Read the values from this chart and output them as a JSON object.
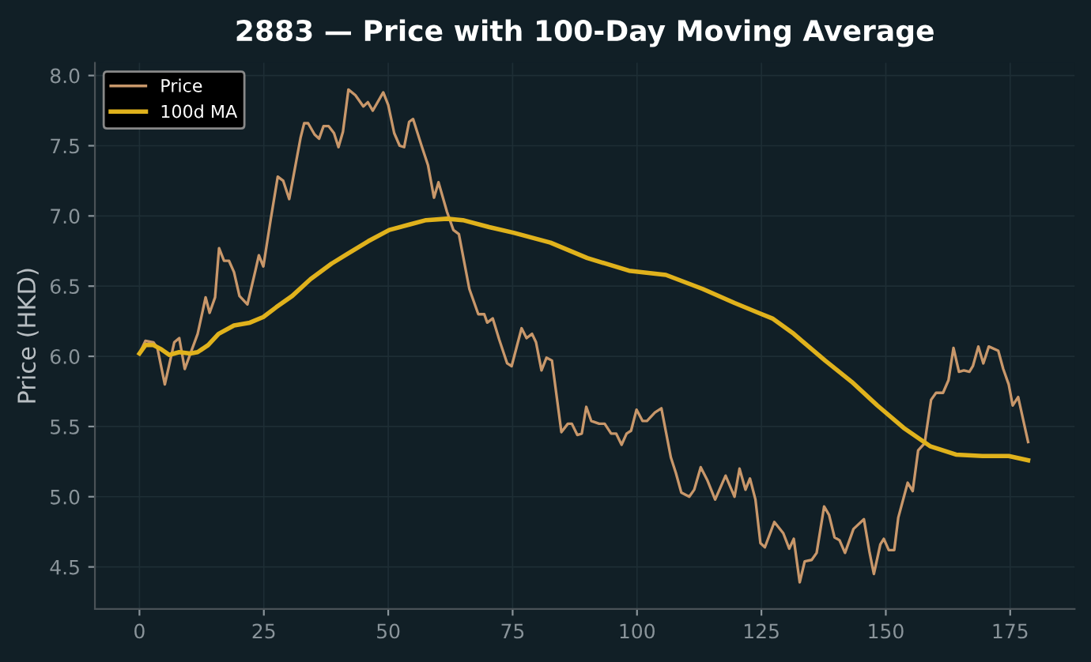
{
  "chart_data": {
    "type": "line",
    "title": "2883 — Price with 100-Day Moving Average",
    "ylabel": "Price (HKD)",
    "xlim": [
      -8.95,
      187.95
    ],
    "xticks": [
      0,
      25,
      50,
      75,
      100,
      125,
      150,
      175
    ],
    "ylim": [
      4.2,
      8.09
    ],
    "yticks": [
      {
        "value": 4.5,
        "label": "4.5"
      },
      {
        "value": 5.0,
        "label": "5.0"
      },
      {
        "value": 5.5,
        "label": "5.5"
      },
      {
        "value": 6.0,
        "label": "6.0"
      },
      {
        "value": 6.5,
        "label": "6.5"
      },
      {
        "value": 7.0,
        "label": "7.0"
      },
      {
        "value": 7.5,
        "label": "7.5"
      },
      {
        "value": 8.0,
        "label": "8.0"
      }
    ],
    "grid": true,
    "legend": "top left",
    "marker": "none",
    "line_style": "solid",
    "series": [
      {
        "name": "Price",
        "color": "#c8976a",
        "x": [
          0,
          1.2,
          2.8,
          3.6,
          5.1,
          7,
          8,
          9.1,
          11.7,
          13.3,
          14.1,
          15.2,
          16,
          17,
          18,
          19,
          20.1,
          21.7,
          23.3,
          24,
          24.9,
          26.4,
          27.8,
          28.9,
          30.1,
          32.4,
          33.1,
          33.9,
          35.2,
          36.1,
          37,
          38,
          39.1,
          40,
          40.9,
          42,
          43.4,
          45,
          45.9,
          46.9,
          49,
          50,
          51.2,
          52.3,
          53.2,
          54.2,
          55,
          56.7,
          58,
          59.2,
          60.1,
          61.8,
          63.1,
          64.2,
          66.3,
          68.1,
          69.3,
          69.9,
          71,
          72.3,
          73.9,
          74.8,
          76.8,
          77.8,
          78.9,
          79.7,
          80.8,
          81.8,
          82.9,
          84.8,
          86.1,
          86.9,
          88,
          88.9,
          89.8,
          90.8,
          92.4,
          93.5,
          94.8,
          95.8,
          96.9,
          97.9,
          98.8,
          99.9,
          101.1,
          102,
          103.6,
          104.9,
          106.8,
          107.8,
          108.9,
          110.5,
          111.5,
          112.8,
          114.1,
          115.7,
          117.8,
          119.6,
          120.6,
          121.8,
          122.7,
          123.8,
          124.8,
          125.7,
          127.6,
          129.4,
          130.6,
          131.5,
          132.7,
          133.7,
          135.1,
          136.1,
          137.6,
          138.6,
          139.7,
          140.7,
          141.8,
          143.5,
          145.6,
          146.7,
          147.6,
          148.9,
          149.6,
          150.6,
          151.7,
          152.5,
          154.4,
          155.4,
          156.5,
          157.8,
          159.1,
          160.1,
          161.5,
          162.6,
          163.6,
          164.7,
          165.7,
          166.8,
          167.5,
          168.6,
          169.6,
          170.7,
          172.6,
          173.6,
          174.7,
          175.5,
          176.6,
          178.6
        ],
        "values": [
          6.02,
          6.11,
          6.1,
          6.06,
          5.8,
          6.1,
          6.13,
          5.91,
          6.16,
          6.42,
          6.31,
          6.42,
          6.77,
          6.68,
          6.68,
          6.6,
          6.43,
          6.37,
          6.61,
          6.72,
          6.64,
          6.98,
          7.28,
          7.25,
          7.12,
          7.56,
          7.66,
          7.66,
          7.58,
          7.55,
          7.64,
          7.64,
          7.59,
          7.49,
          7.6,
          7.9,
          7.86,
          7.78,
          7.81,
          7.75,
          7.88,
          7.79,
          7.59,
          7.5,
          7.49,
          7.67,
          7.69,
          7.5,
          7.36,
          7.13,
          7.24,
          7.03,
          6.9,
          6.87,
          6.48,
          6.3,
          6.3,
          6.24,
          6.27,
          6.12,
          5.95,
          5.93,
          6.2,
          6.13,
          6.16,
          6.1,
          5.9,
          5.99,
          5.97,
          5.46,
          5.52,
          5.52,
          5.44,
          5.45,
          5.64,
          5.54,
          5.52,
          5.52,
          5.45,
          5.45,
          5.37,
          5.45,
          5.47,
          5.62,
          5.54,
          5.54,
          5.6,
          5.63,
          5.28,
          5.17,
          5.03,
          5.0,
          5.05,
          5.21,
          5.12,
          4.98,
          5.15,
          5.0,
          5.2,
          5.05,
          5.13,
          4.98,
          4.67,
          4.64,
          4.82,
          4.74,
          4.63,
          4.7,
          4.39,
          4.54,
          4.55,
          4.6,
          4.93,
          4.87,
          4.71,
          4.69,
          4.6,
          4.77,
          4.84,
          4.61,
          4.45,
          4.66,
          4.7,
          4.62,
          4.62,
          4.85,
          5.1,
          5.04,
          5.33,
          5.38,
          5.69,
          5.74,
          5.74,
          5.83,
          6.06,
          5.89,
          5.9,
          5.89,
          5.93,
          6.07,
          5.95,
          6.07,
          6.04,
          5.91,
          5.8,
          5.65,
          5.71,
          5.39
        ]
      },
      {
        "name": "100d MA",
        "color": "#e0b21c",
        "x": [
          0,
          1.2,
          2.8,
          4.4,
          6,
          8,
          10.2,
          11.7,
          13.8,
          15.9,
          19,
          22.2,
          24.9,
          27.5,
          30.7,
          34.4,
          38.6,
          41.8,
          46,
          50.2,
          54.4,
          57.6,
          61.8,
          65,
          70.3,
          75.2,
          82.6,
          90,
          98.4,
          105.8,
          113.2,
          119.6,
          124.4,
          127.2,
          131.5,
          137.8,
          143.1,
          148.3,
          153.6,
          158.9,
          164.1,
          169.4,
          174.7,
          178.6
        ],
        "values": [
          6.02,
          6.08,
          6.08,
          6.05,
          6.01,
          6.03,
          6.02,
          6.03,
          6.08,
          6.16,
          6.22,
          6.24,
          6.28,
          6.35,
          6.43,
          6.55,
          6.66,
          6.73,
          6.82,
          6.9,
          6.94,
          6.97,
          6.98,
          6.97,
          6.92,
          6.88,
          6.81,
          6.7,
          6.61,
          6.58,
          6.48,
          6.38,
          6.31,
          6.27,
          6.16,
          5.97,
          5.82,
          5.65,
          5.49,
          5.36,
          5.3,
          5.29,
          5.29,
          5.26
        ]
      }
    ]
  }
}
